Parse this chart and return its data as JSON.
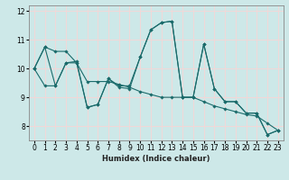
{
  "xlabel": "Humidex (Indice chaleur)",
  "background_color": "#cde8e8",
  "grid_color": "#f0d8d8",
  "line_color": "#1a6b6b",
  "xlim": [
    -0.5,
    23.5
  ],
  "ylim": [
    7.5,
    12.2
  ],
  "yticks": [
    8,
    9,
    10,
    11,
    12
  ],
  "xticks": [
    0,
    1,
    2,
    3,
    4,
    5,
    6,
    7,
    8,
    9,
    10,
    11,
    12,
    13,
    14,
    15,
    16,
    17,
    18,
    19,
    20,
    21,
    22,
    23
  ],
  "series1": [
    10.0,
    10.75,
    9.4,
    10.2,
    10.25,
    8.65,
    8.75,
    9.65,
    9.4,
    9.4,
    10.4,
    11.35,
    11.6,
    11.65,
    9.0,
    9.0,
    10.85,
    9.3,
    8.85,
    8.85,
    8.45,
    8.45,
    7.7,
    7.85
  ],
  "series2": [
    10.0,
    10.75,
    10.6,
    10.6,
    10.2,
    9.55,
    9.55,
    9.55,
    9.45,
    9.35,
    9.2,
    9.1,
    9.0,
    9.0,
    9.0,
    9.0,
    8.85,
    8.7,
    8.6,
    8.5,
    8.4,
    8.35,
    8.1,
    7.85
  ],
  "series3": [
    10.0,
    9.4,
    9.4,
    10.2,
    10.2,
    8.65,
    8.75,
    9.65,
    9.35,
    9.3,
    10.4,
    11.35,
    11.6,
    11.65,
    9.0,
    9.0,
    10.85,
    9.3,
    8.85,
    8.85,
    8.45,
    8.45,
    7.7,
    7.85
  ]
}
